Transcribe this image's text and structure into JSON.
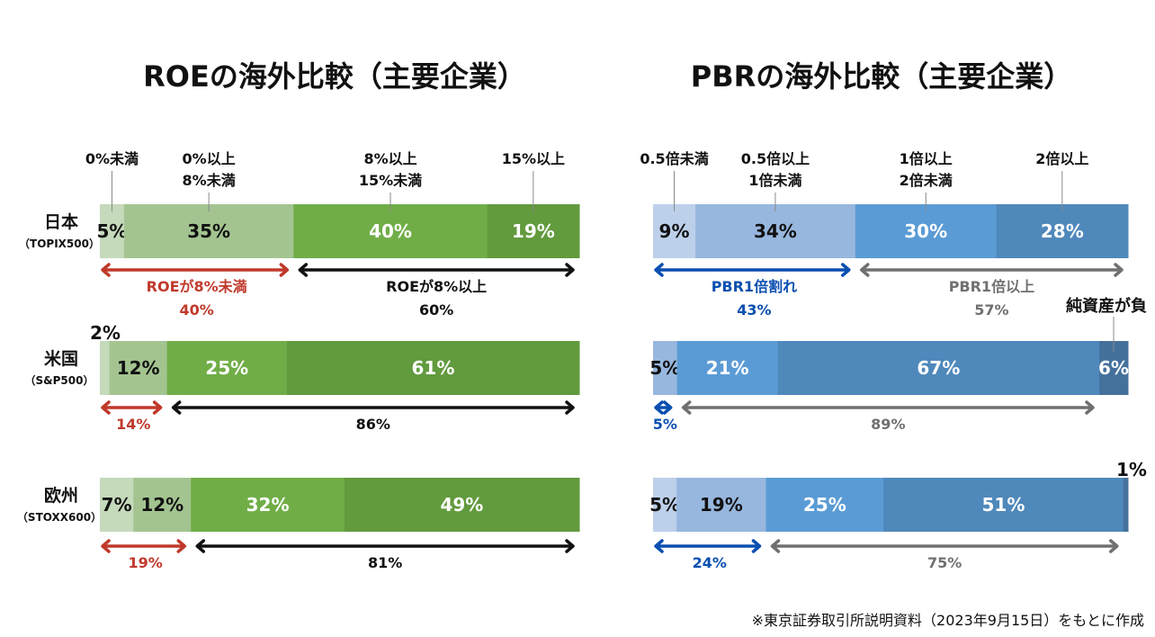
{
  "chart_data": [
    {
      "type": "bar",
      "orientation": "horizontal-stacked-100",
      "title": "ROEの海外比較（主要企業）",
      "categories": [
        "0%未満",
        "0%以上\n8%未満",
        "8%以上\n15%未満",
        "15%以上"
      ],
      "colors": [
        "#c5d9bb",
        "#a3c490",
        "#70ad47",
        "#629a3e"
      ],
      "rows": [
        {
          "name": "日本",
          "sub": "（TOPIX500）",
          "values": [
            5,
            35,
            40,
            19
          ],
          "labels": [
            "5%",
            "35%",
            "40%",
            "19%"
          ]
        },
        {
          "name": "米国",
          "sub": "（S&P500）",
          "values": [
            2,
            12,
            25,
            61
          ],
          "labels": [
            "2%",
            "12%",
            "25%",
            "61%"
          ]
        },
        {
          "name": "欧州",
          "sub": "（STOXX600）",
          "values": [
            7,
            12,
            32,
            49
          ],
          "labels": [
            "7%",
            "12%",
            "32%",
            "49%"
          ]
        }
      ],
      "groups": {
        "low": {
          "name": "ROEが8%未満",
          "color": "#c0392b",
          "values": [
            "40%",
            "14%",
            "19%"
          ]
        },
        "high": {
          "name": "ROEが8%以上",
          "color": "#111111",
          "values": [
            "60%",
            "86%",
            "81%"
          ]
        }
      }
    },
    {
      "type": "bar",
      "orientation": "horizontal-stacked-100",
      "title": "PBRの海外比較（主要企業）",
      "categories": [
        "0.5倍未満",
        "0.5倍以上\n1倍未満",
        "1倍以上\n2倍未満",
        "2倍以上",
        "純資産が負"
      ],
      "colors": [
        "#bdd0ea",
        "#97b7de",
        "#5b9bd5",
        "#4f88bb",
        "#44719c"
      ],
      "rows": [
        {
          "name": "日本",
          "values": [
            9,
            34,
            30,
            28,
            0
          ],
          "labels": [
            "9%",
            "34%",
            "30%",
            "28%",
            ""
          ]
        },
        {
          "name": "米国",
          "values": [
            0,
            5,
            21,
            67,
            6
          ],
          "labels": [
            "",
            "5%",
            "21%",
            "67%",
            "6%"
          ]
        },
        {
          "name": "欧州",
          "values": [
            5,
            19,
            25,
            51,
            1
          ],
          "labels": [
            "5%",
            "19%",
            "25%",
            "51%",
            "1%"
          ]
        }
      ],
      "groups": {
        "low": {
          "name": "PBR1倍割れ",
          "color": "#0a4fb0",
          "values": [
            "43%",
            "5%",
            "24%"
          ]
        },
        "high": {
          "name": "PBR1倍以上",
          "color": "#707070",
          "values": [
            "57%",
            "89%",
            "75%"
          ]
        }
      }
    }
  ],
  "footnote": "※東京証券取引所説明資料（2023年9月15日）をもとに作成"
}
